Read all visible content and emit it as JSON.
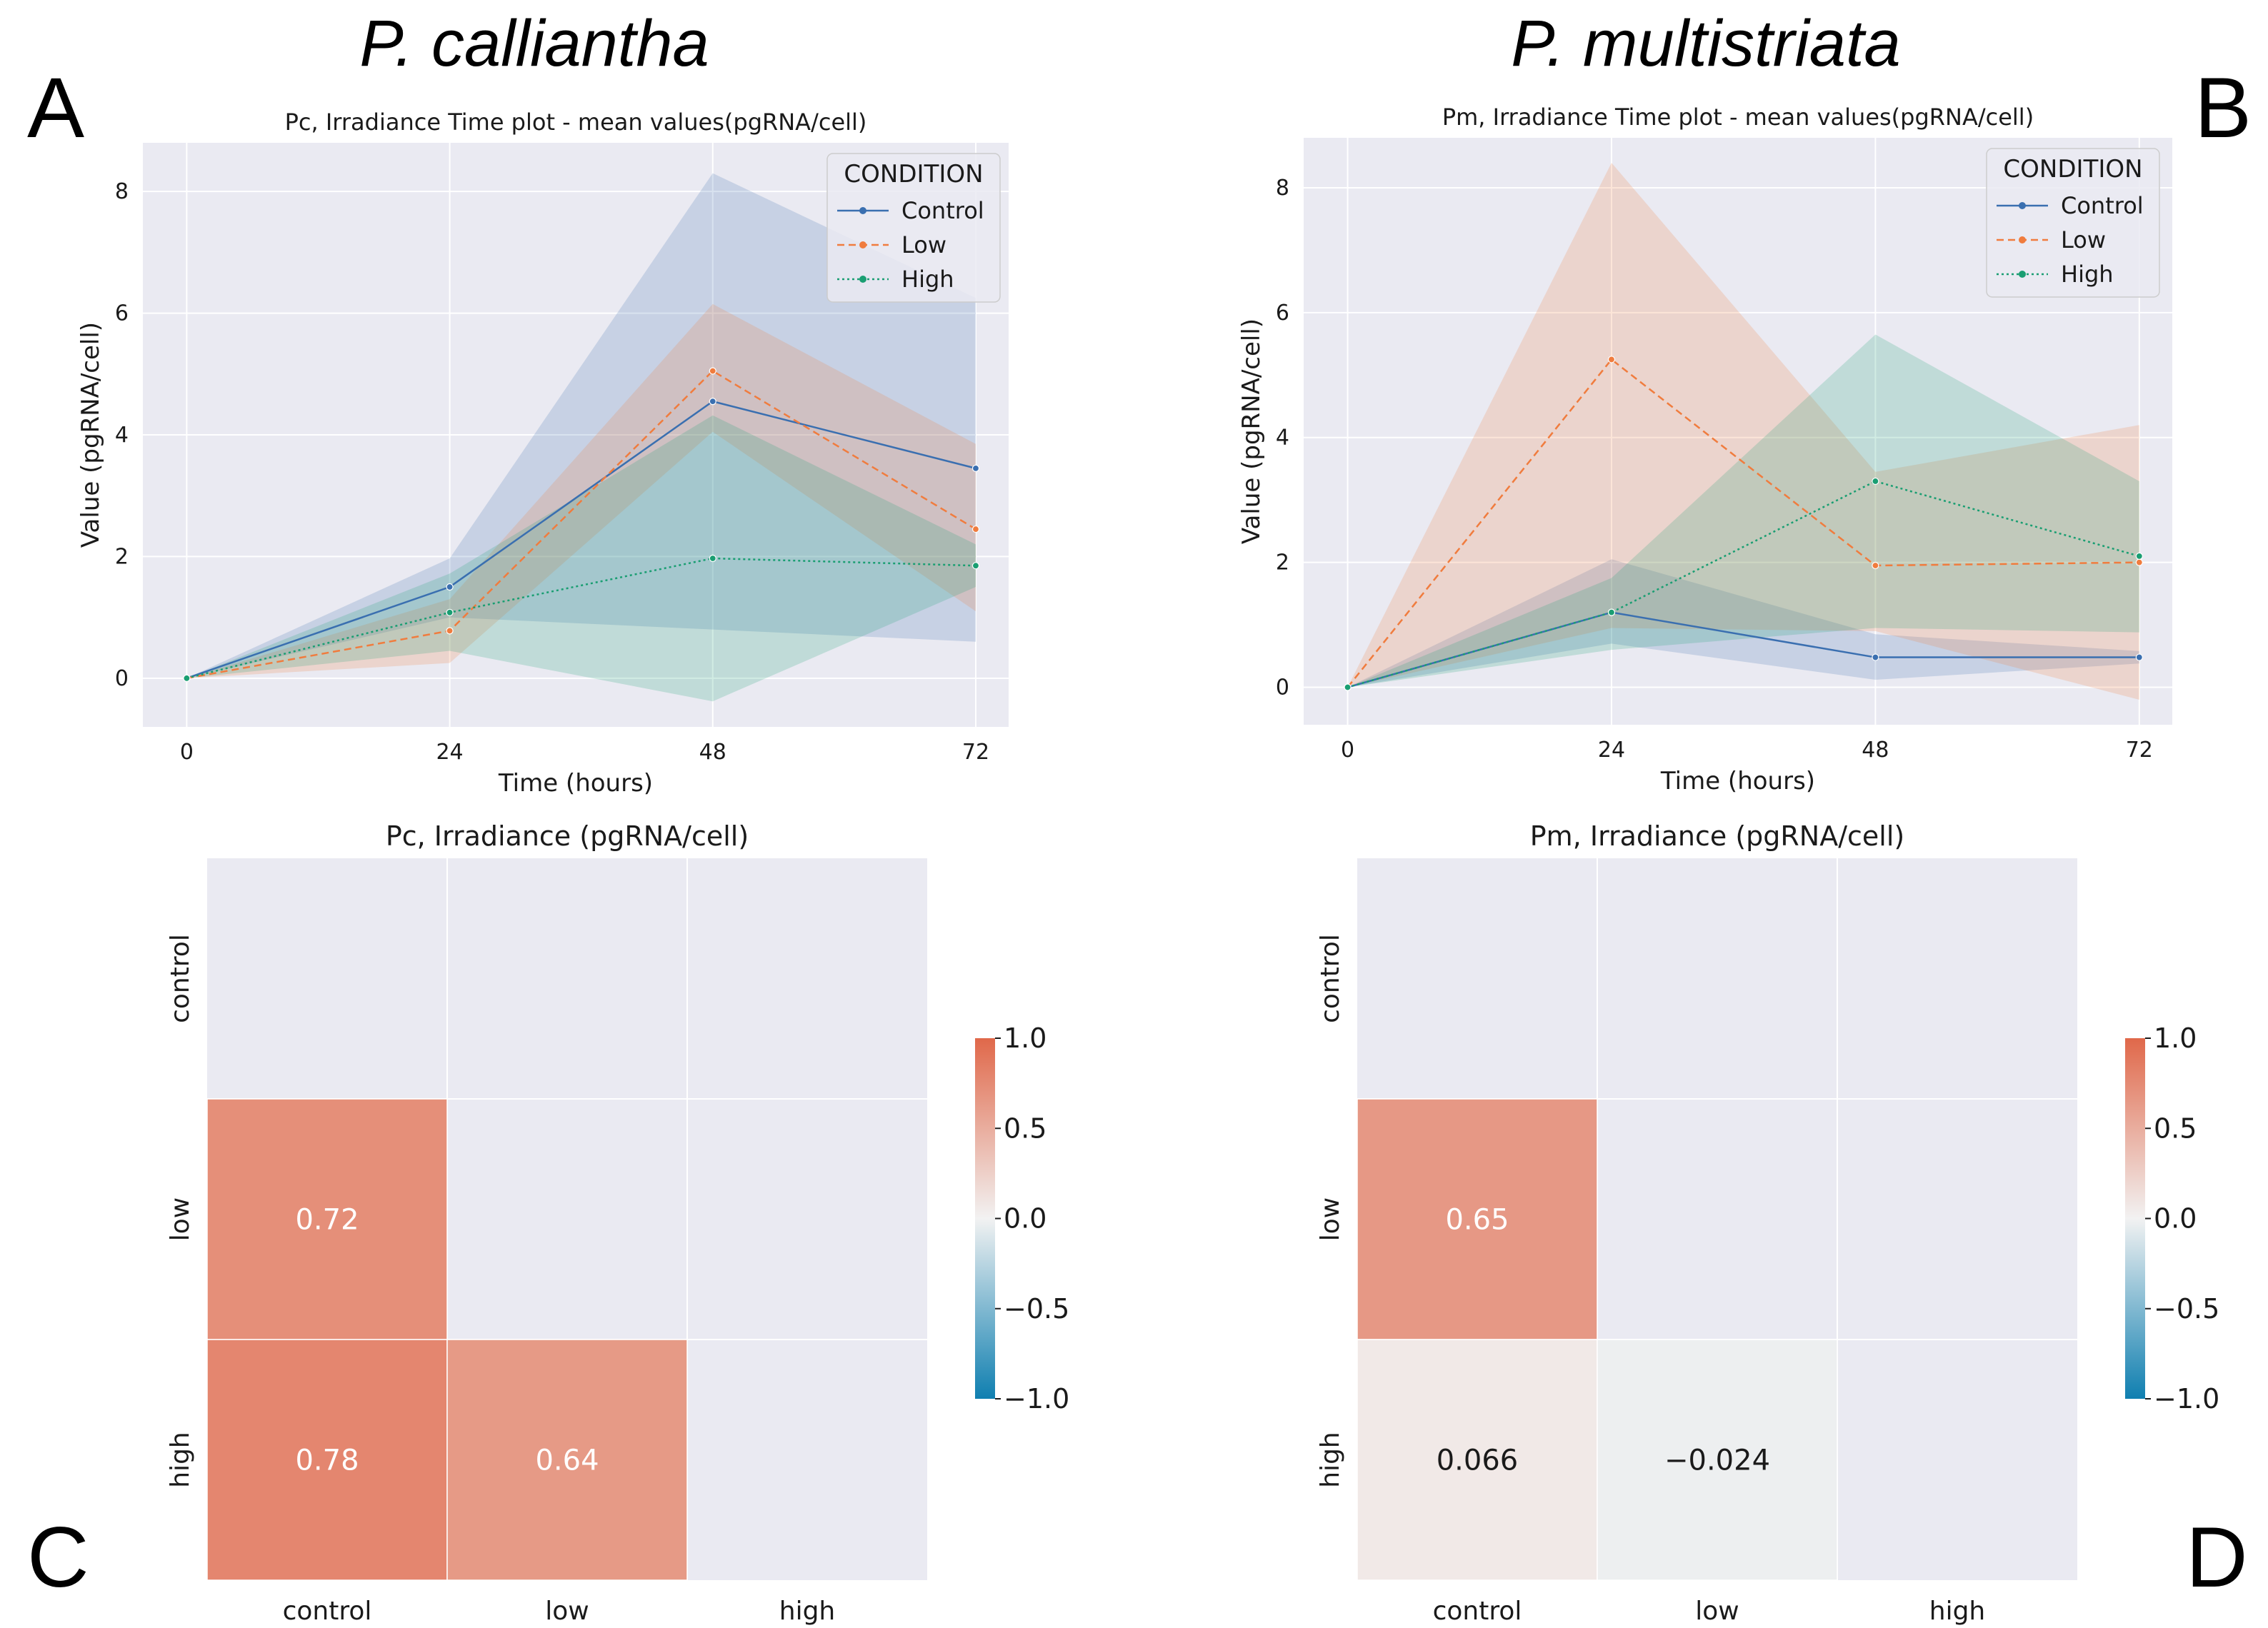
{
  "figure": {
    "species": [
      "P. calliantha",
      "P. multistriata"
    ],
    "panel_letters": [
      "A",
      "B",
      "C",
      "D"
    ]
  },
  "colors": {
    "axes_bg": "#eaeaf2",
    "grid": "#ffffff",
    "control": "#3a6fb0",
    "low": "#f07c3e",
    "high": "#1a9e72",
    "diverging_neg": "#0f7fb0",
    "diverging_mid": "#f2f2f2",
    "diverging_pos": "#e0684a"
  },
  "chart_data": [
    {
      "type": "line",
      "panel": "A",
      "title": "Pc, Irradiance Time plot - mean values(pgRNA/cell)",
      "xlabel": "Time (hours)",
      "ylabel": "Value (pgRNA/cell)",
      "x": [
        0,
        24,
        48,
        72
      ],
      "xticks": [
        0,
        24,
        48,
        72
      ],
      "yticks": [
        0,
        2,
        4,
        6,
        8
      ],
      "xlim": [
        -4,
        75
      ],
      "ylim": [
        -0.8,
        8.8
      ],
      "legend": {
        "title": "CONDITION",
        "placement": "upper-right"
      },
      "series": [
        {
          "name": "Control",
          "key": "control",
          "values": [
            0,
            1.5,
            4.55,
            3.45
          ],
          "ci_low": [
            0,
            1.0,
            0.8,
            0.6
          ],
          "ci_high": [
            0,
            1.97,
            8.3,
            6.25
          ]
        },
        {
          "name": "Low",
          "key": "low",
          "values": [
            0,
            0.78,
            5.05,
            2.45
          ],
          "ci_low": [
            0,
            0.25,
            4.05,
            1.1
          ],
          "ci_high": [
            0,
            1.3,
            6.15,
            3.85
          ]
        },
        {
          "name": "High",
          "key": "high",
          "values": [
            0,
            1.08,
            1.97,
            1.85
          ],
          "ci_low": [
            0,
            0.45,
            -0.38,
            1.5
          ],
          "ci_high": [
            0,
            1.72,
            4.32,
            2.2
          ]
        }
      ]
    },
    {
      "type": "line",
      "panel": "B",
      "title": "Pm, Irradiance Time plot - mean values(pgRNA/cell)",
      "xlabel": "Time (hours)",
      "ylabel": "Value (pgRNA/cell)",
      "x": [
        0,
        24,
        48,
        72
      ],
      "xticks": [
        0,
        24,
        48,
        72
      ],
      "yticks": [
        0,
        2,
        4,
        6,
        8
      ],
      "xlim": [
        -4,
        75
      ],
      "ylim": [
        -0.6,
        8.8
      ],
      "legend": {
        "title": "CONDITION",
        "placement": "upper-right"
      },
      "series": [
        {
          "name": "Control",
          "key": "control",
          "values": [
            0,
            1.2,
            0.48,
            0.48
          ],
          "ci_low": [
            0,
            0.7,
            0.12,
            0.38
          ],
          "ci_high": [
            0,
            2.05,
            0.85,
            0.58
          ]
        },
        {
          "name": "Low",
          "key": "low",
          "values": [
            0,
            5.25,
            1.95,
            2.0
          ],
          "ci_low": [
            0,
            0.95,
            0.9,
            -0.2
          ],
          "ci_high": [
            0,
            8.4,
            3.45,
            4.2
          ]
        },
        {
          "name": "High",
          "key": "high",
          "values": [
            0,
            1.2,
            3.3,
            2.1
          ],
          "ci_low": [
            0,
            0.6,
            0.95,
            0.88
          ],
          "ci_high": [
            0,
            1.75,
            5.65,
            3.3
          ]
        }
      ]
    },
    {
      "type": "heatmap",
      "panel": "C",
      "title": "Pc, Irradiance (pgRNA/cell)",
      "labels": [
        "control",
        "low",
        "high"
      ],
      "vmin": -1.0,
      "vmax": 1.0,
      "cbar_ticks": [
        "1.0",
        "0.5",
        "0.0",
        "−0.5",
        "−1.0"
      ],
      "cells": [
        {
          "row": 1,
          "col": 0,
          "value": 0.72,
          "label": "0.72"
        },
        {
          "row": 2,
          "col": 0,
          "value": 0.78,
          "label": "0.78"
        },
        {
          "row": 2,
          "col": 1,
          "value": 0.64,
          "label": "0.64"
        }
      ]
    },
    {
      "type": "heatmap",
      "panel": "D",
      "title": "Pm, Irradiance (pgRNA/cell)",
      "labels": [
        "control",
        "low",
        "high"
      ],
      "vmin": -1.0,
      "vmax": 1.0,
      "cbar_ticks": [
        "1.0",
        "0.5",
        "0.0",
        "−0.5",
        "−1.0"
      ],
      "cells": [
        {
          "row": 1,
          "col": 0,
          "value": 0.65,
          "label": "0.65"
        },
        {
          "row": 2,
          "col": 0,
          "value": 0.066,
          "label": "0.066"
        },
        {
          "row": 2,
          "col": 1,
          "value": -0.024,
          "label": "−0.024"
        }
      ]
    }
  ]
}
